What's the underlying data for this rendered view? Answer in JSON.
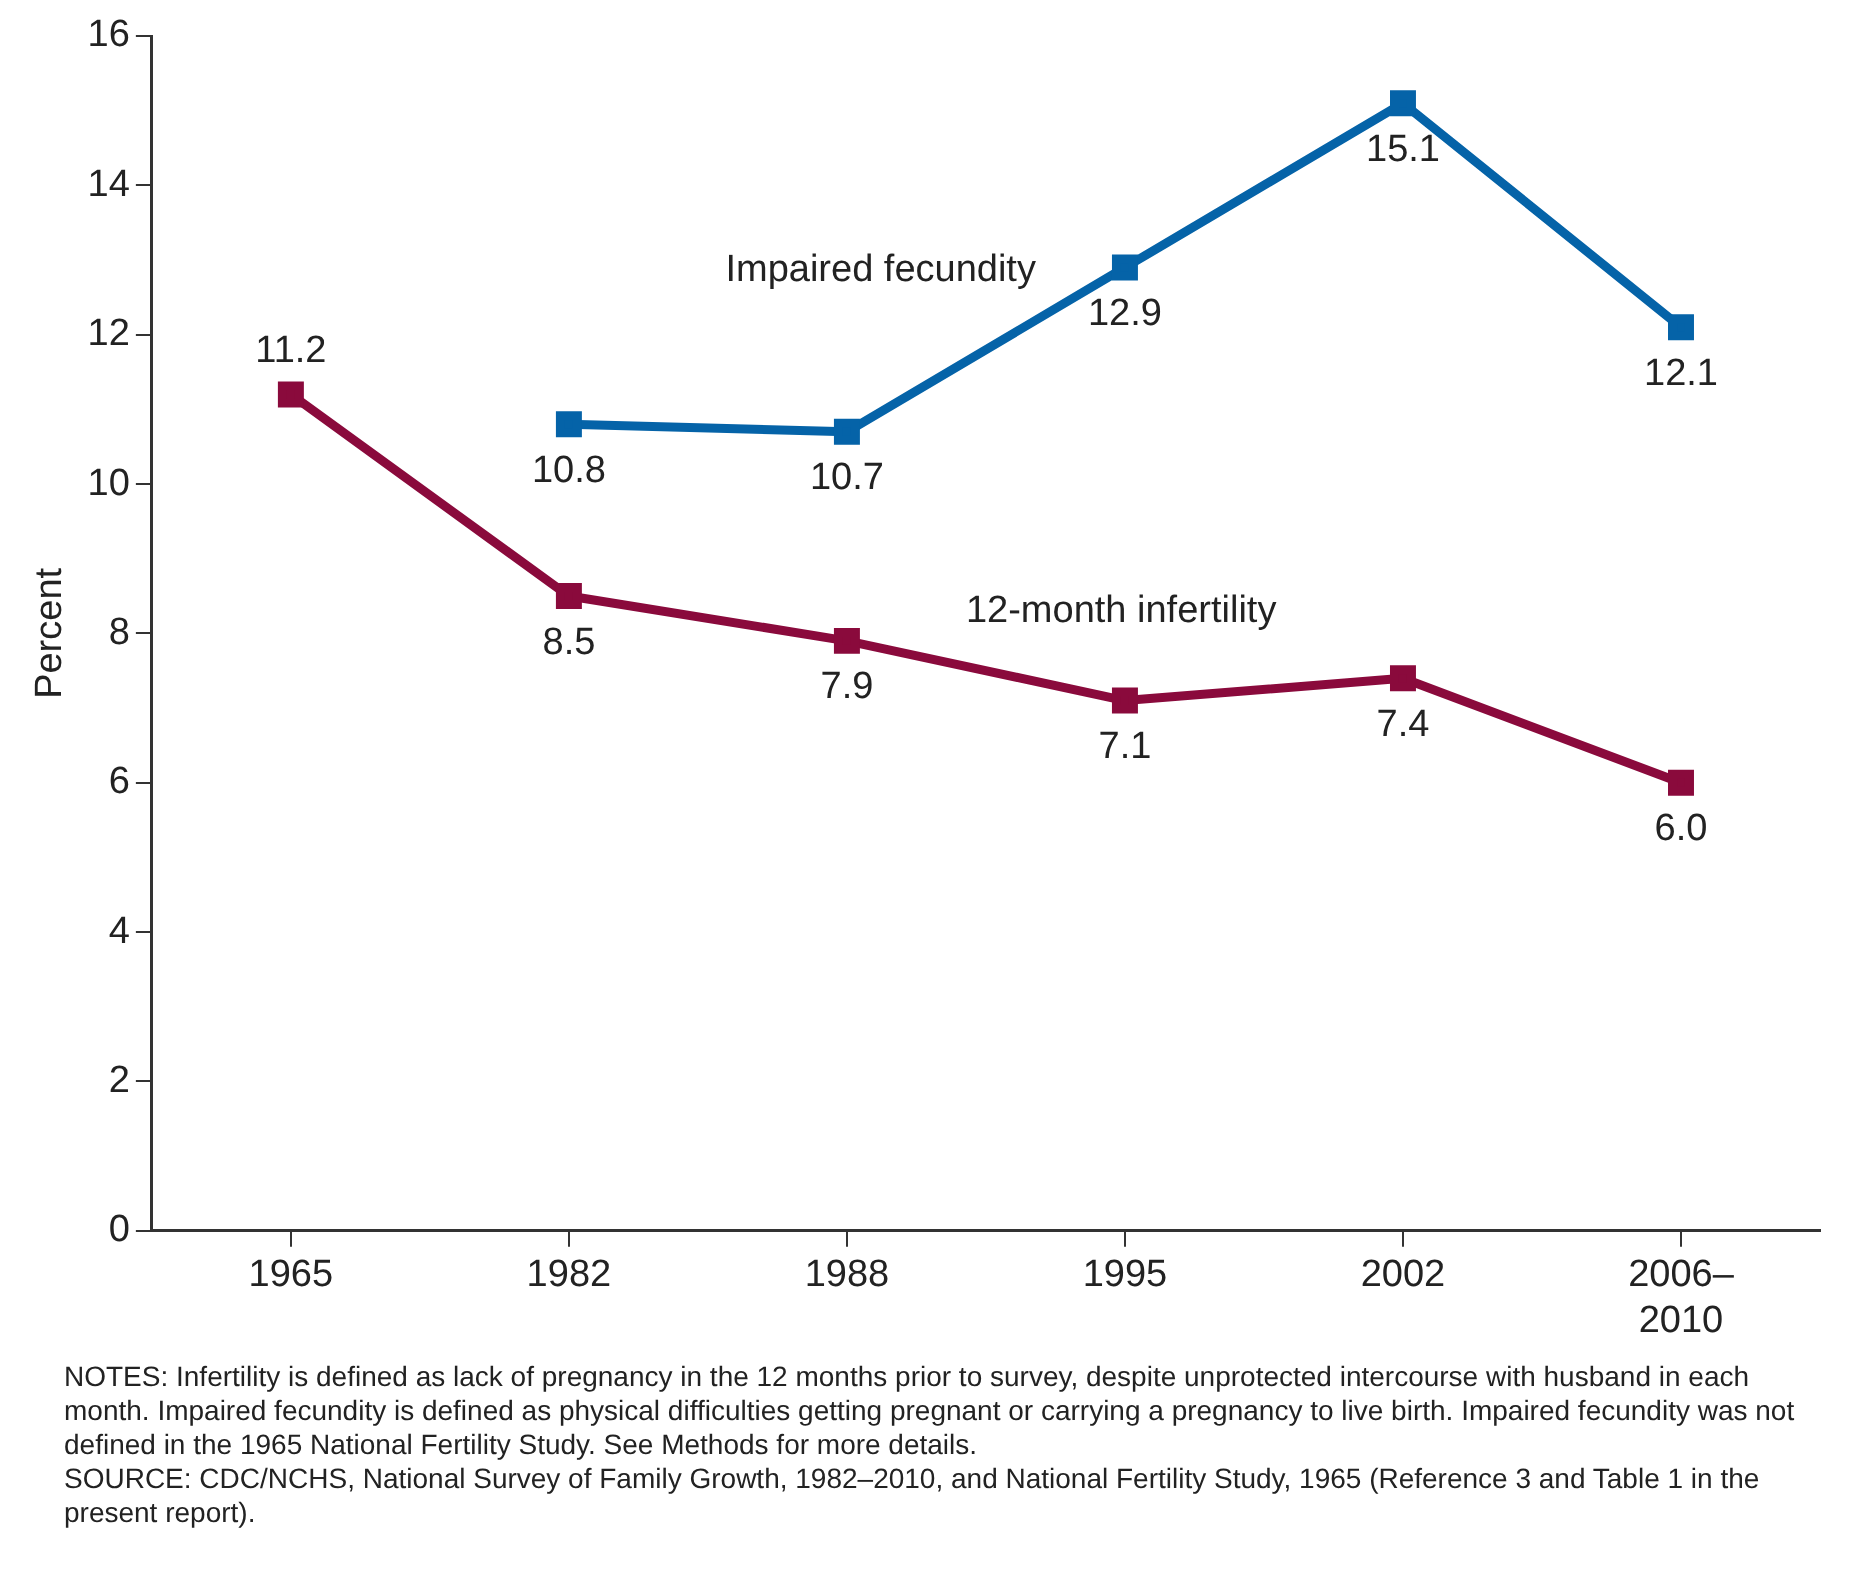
{
  "chart_data": {
    "type": "line",
    "ylabel": "Percent",
    "categories": [
      "1965",
      "1982",
      "1988",
      "1995",
      "2002",
      "2006–2010"
    ],
    "series": [
      {
        "name": "Impaired fecundity",
        "color": "#0563a8",
        "values": [
          null,
          10.8,
          10.7,
          12.9,
          15.1,
          12.1
        ],
        "value_labels": [
          null,
          "10.8",
          "10.7",
          "12.9",
          "15.1",
          "12.1"
        ]
      },
      {
        "name": "12-month infertility",
        "color": "#8a0a3c",
        "values": [
          11.2,
          8.5,
          7.9,
          7.1,
          7.4,
          6.0
        ],
        "value_labels": [
          "11.2",
          "8.5",
          "7.9",
          "7.1",
          "7.4",
          "6.0"
        ]
      }
    ],
    "ylim": [
      0,
      16
    ],
    "yticks": [
      0,
      2,
      4,
      6,
      8,
      10,
      12,
      14,
      16
    ],
    "grid": false,
    "legend": false,
    "marker": "square",
    "line_style": "solid",
    "annotations": [
      "NOTES: Infertility is defined as lack of pregnancy in the 12 months prior to survey, despite unprotected intercourse with husband in each month. Impaired fecundity is defined as physical difficulties getting pregnant or carrying a pregnancy to live birth. Impaired fecundity was not defined in the 1965 National Fertility Study. See Methods for more details.",
      "SOURCE: CDC/NCHS, National Survey of Family Growth, 1982–2010, and National Fertility Study, 1965 (Reference 3 and Table 1 in the present report)."
    ]
  }
}
